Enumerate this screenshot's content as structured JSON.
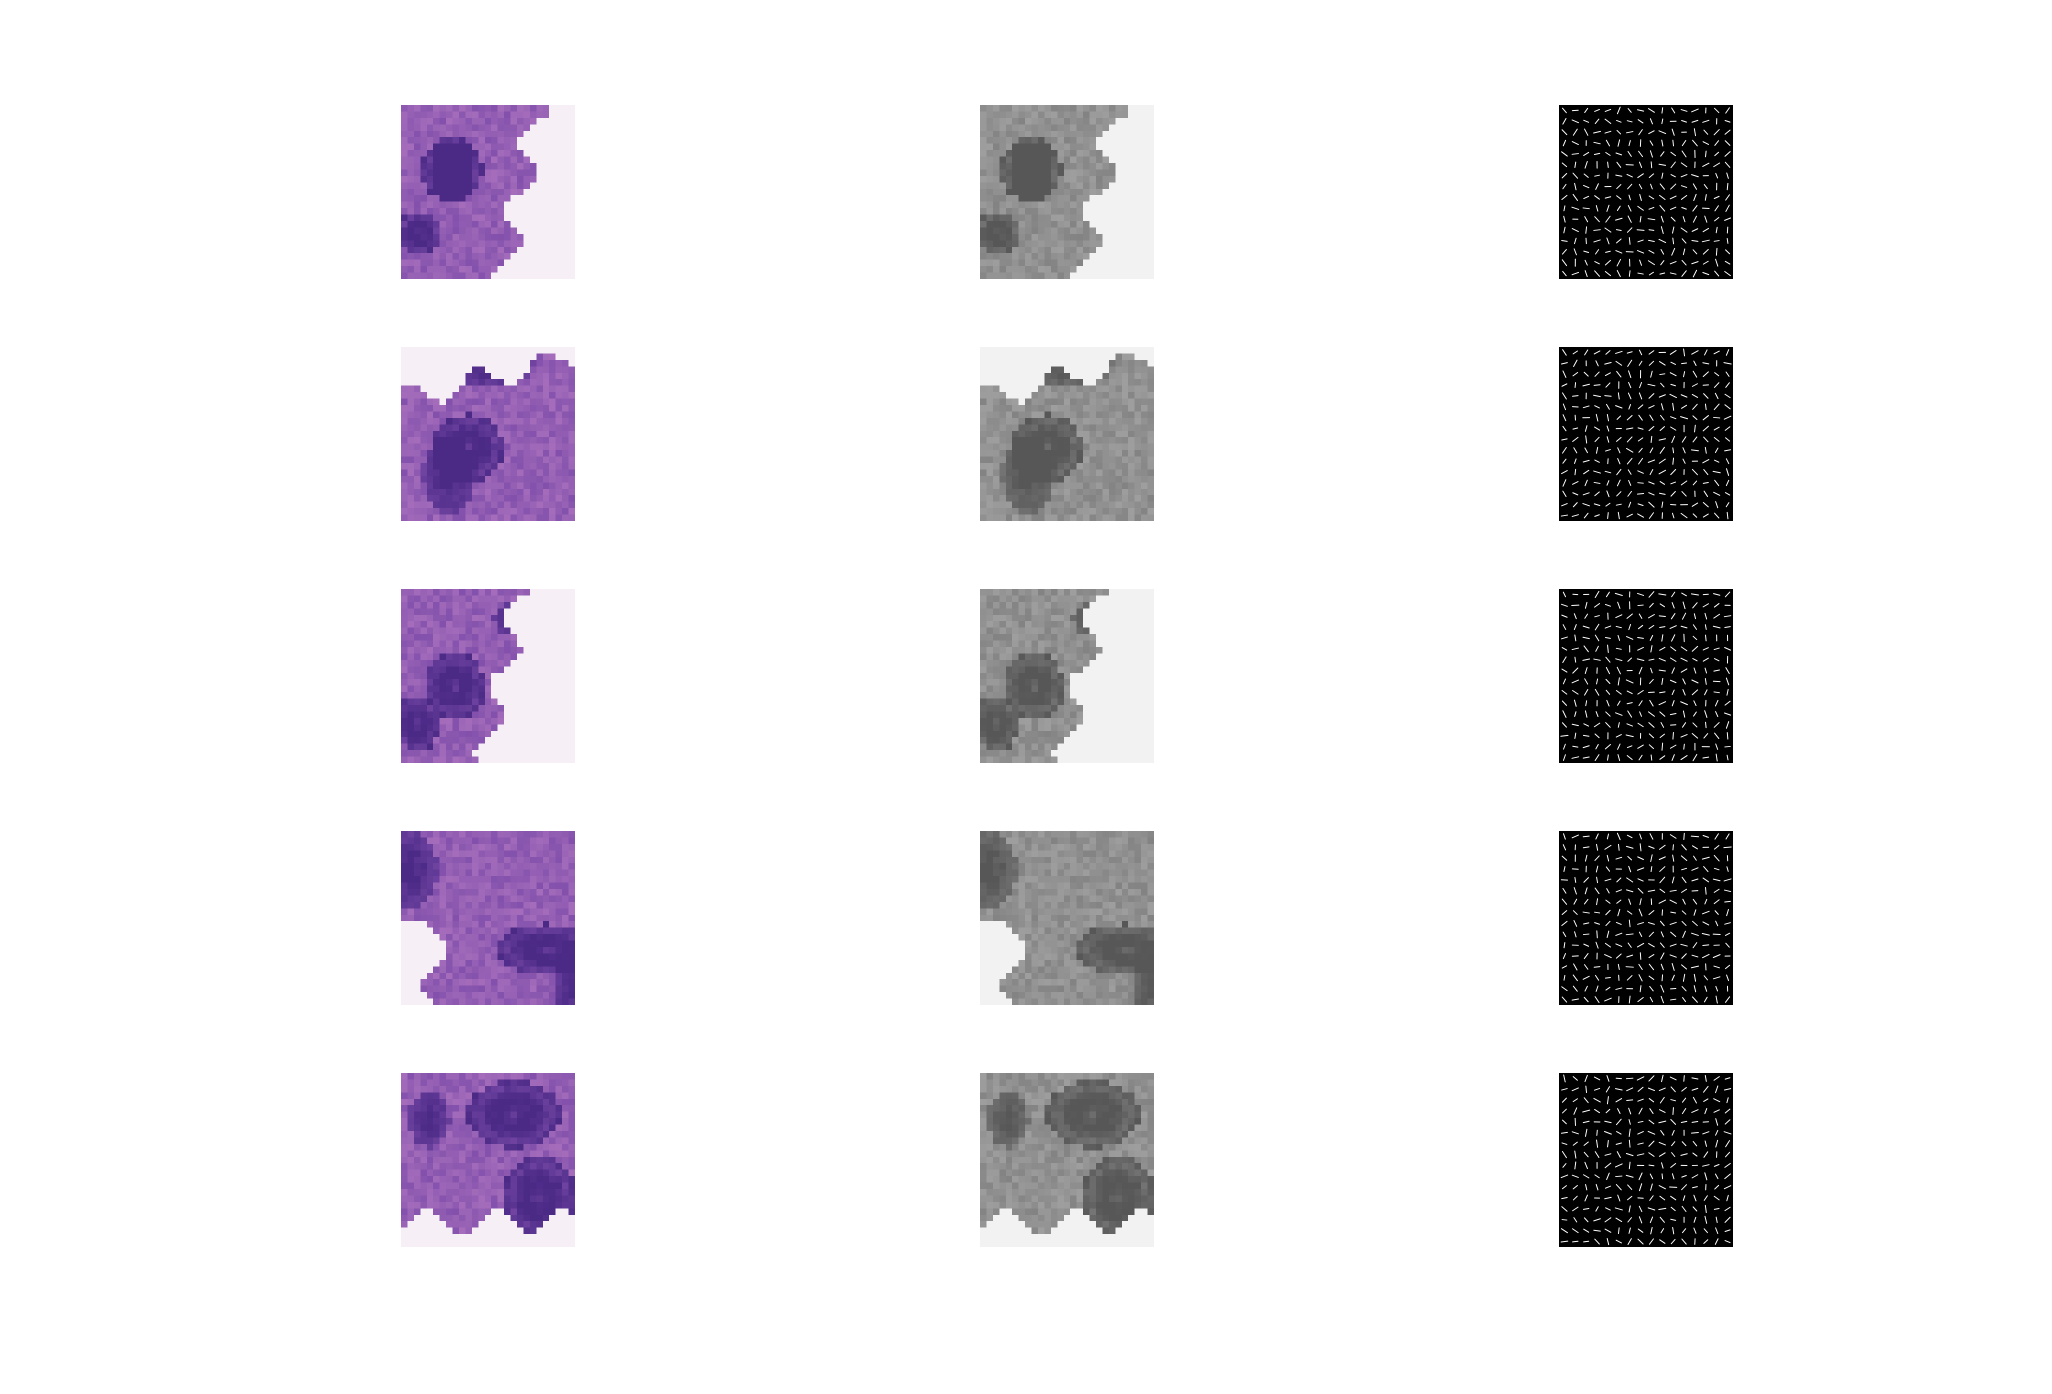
{
  "figure": {
    "layout": "5x3 image grid",
    "columns": [
      {
        "key": "rgb",
        "kind": "H&E color tissue patch"
      },
      {
        "key": "gray",
        "kind": "grayscale tissue patch"
      },
      {
        "key": "hog",
        "kind": "oriented gradient feature map"
      }
    ],
    "colors": {
      "background": "#ffffff",
      "stain_pink": "#cf8fce",
      "stain_purple": "#7a4aa8",
      "stain_dark": "#4b2a86",
      "gray_light": "#d4d4d4",
      "gray_dark": "#7d7d7d",
      "hog_background": "#000000",
      "hog_stroke": "#ffffff"
    },
    "rows": [
      {
        "seed": 11,
        "hog_seed": 101
      },
      {
        "seed": 23,
        "hog_seed": 203
      },
      {
        "seed": 37,
        "hog_seed": 307
      },
      {
        "seed": 41,
        "hog_seed": 409
      },
      {
        "seed": 59,
        "hog_seed": 503
      }
    ]
  }
}
